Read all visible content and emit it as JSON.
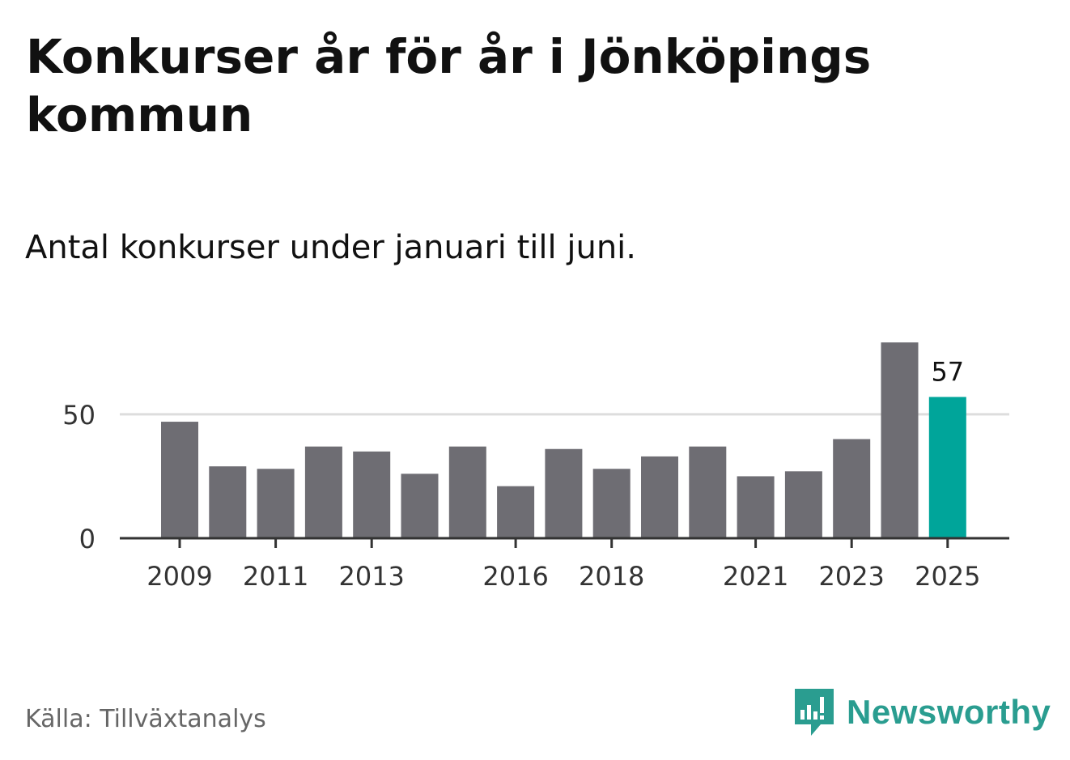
{
  "title": "Konkurser år för år i Jönköpings kommun",
  "subtitle": "Antal konkurser under januari till juni.",
  "source": "Källa: Tillväxtanalys",
  "brand": {
    "name": "Newsworthy",
    "color": "#2a9d90",
    "icon": "newsworthy-logo-icon"
  },
  "chart_data": {
    "type": "bar",
    "categories": [
      "2009",
      "2010",
      "2011",
      "2012",
      "2013",
      "2014",
      "2015",
      "2016",
      "2017",
      "2018",
      "2019",
      "2020",
      "2021",
      "2022",
      "2023",
      "2024",
      "2025"
    ],
    "values": [
      47,
      29,
      28,
      37,
      35,
      26,
      37,
      21,
      36,
      28,
      33,
      37,
      25,
      27,
      40,
      79,
      57
    ],
    "x_tick_labels": [
      "2009",
      "2011",
      "2013",
      "2016",
      "2018",
      "2021",
      "2023",
      "2025"
    ],
    "y_ticks": [
      0,
      50
    ],
    "ylim": [
      0,
      80
    ],
    "grid": true,
    "highlight": {
      "category": "2025",
      "label": "57"
    },
    "colors": {
      "bar": "#6e6d73",
      "highlight": "#00a59a",
      "grid": "#dddddd",
      "axis": "#333333"
    }
  }
}
